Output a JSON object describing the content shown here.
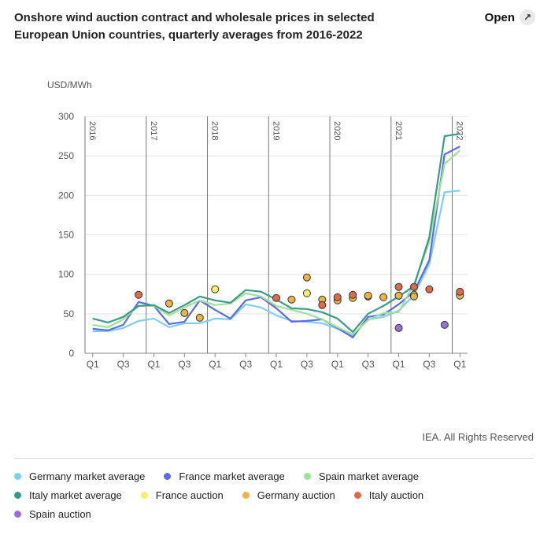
{
  "header": {
    "title": "Onshore wind auction contract and wholesale prices in selected European Union countries, quarterly averages from 2016-2022",
    "open_label": "Open",
    "open_icon": "external-link-icon"
  },
  "credit": "IEA. All Rights Reserved",
  "chart_data": {
    "type": "line",
    "ylabel": "USD/MWh",
    "ylim": [
      0,
      300
    ],
    "yticks": [
      "0",
      "50",
      "100",
      "150",
      "200",
      "250",
      "300"
    ],
    "year_labels": [
      "2016",
      "2017",
      "2018",
      "2019",
      "2020",
      "2021",
      "2022"
    ],
    "x_tick_labels": [
      "Q1",
      "Q3",
      "Q1",
      "Q3",
      "Q1",
      "Q3",
      "Q1",
      "Q3",
      "Q1",
      "Q3",
      "Q1",
      "Q3",
      "Q1"
    ],
    "x_range": [
      "2016-Q1",
      "2022-Q1"
    ],
    "series": [
      {
        "name": "Germany market average",
        "kind": "line",
        "color": "#7fcdf4",
        "x": [
          "2016-Q1",
          "2016-Q2",
          "2016-Q3",
          "2016-Q4",
          "2017-Q1",
          "2017-Q2",
          "2017-Q3",
          "2017-Q4",
          "2018-Q1",
          "2018-Q2",
          "2018-Q3",
          "2018-Q4",
          "2019-Q1",
          "2019-Q2",
          "2019-Q3",
          "2019-Q4",
          "2020-Q1",
          "2020-Q2",
          "2020-Q3",
          "2020-Q4",
          "2021-Q1",
          "2021-Q2",
          "2021-Q3",
          "2021-Q4",
          "2022-Q1"
        ],
        "y": [
          28,
          28,
          32,
          41,
          44,
          33,
          38,
          38,
          44,
          43,
          62,
          58,
          48,
          41,
          40,
          38,
          31,
          22,
          43,
          46,
          54,
          74,
          113,
          204,
          206
        ]
      },
      {
        "name": "France market average",
        "kind": "line",
        "color": "#5b6ddc",
        "x": [
          "2016-Q1",
          "2016-Q2",
          "2016-Q3",
          "2016-Q4",
          "2017-Q1",
          "2017-Q2",
          "2017-Q3",
          "2017-Q4",
          "2018-Q1",
          "2018-Q2",
          "2018-Q3",
          "2018-Q4",
          "2019-Q1",
          "2019-Q2",
          "2019-Q3",
          "2019-Q4",
          "2020-Q1",
          "2020-Q2",
          "2020-Q3",
          "2020-Q4",
          "2021-Q1",
          "2021-Q2",
          "2021-Q3",
          "2021-Q4",
          "2022-Q1"
        ],
        "y": [
          31,
          29,
          36,
          65,
          60,
          37,
          40,
          67,
          55,
          44,
          67,
          71,
          57,
          40,
          41,
          43,
          32,
          20,
          46,
          49,
          62,
          78,
          118,
          252,
          262
        ]
      },
      {
        "name": "Spain market average",
        "kind": "line",
        "color": "#9ee29a",
        "x": [
          "2016-Q1",
          "2016-Q2",
          "2016-Q3",
          "2016-Q4",
          "2017-Q1",
          "2017-Q2",
          "2017-Q3",
          "2017-Q4",
          "2018-Q1",
          "2018-Q2",
          "2018-Q3",
          "2018-Q4",
          "2019-Q1",
          "2019-Q2",
          "2019-Q3",
          "2019-Q4",
          "2020-Q1",
          "2020-Q2",
          "2020-Q3",
          "2020-Q4",
          "2021-Q1",
          "2021-Q2",
          "2021-Q3",
          "2021-Q4",
          "2022-Q1"
        ],
        "y": [
          36,
          33,
          43,
          60,
          60,
          48,
          58,
          67,
          61,
          63,
          76,
          72,
          60,
          55,
          50,
          43,
          33,
          24,
          42,
          51,
          52,
          88,
          141,
          240,
          257
        ]
      },
      {
        "name": "Italy market average",
        "kind": "line",
        "color": "#3a9a8a",
        "x": [
          "2016-Q1",
          "2016-Q2",
          "2016-Q3",
          "2016-Q4",
          "2017-Q1",
          "2017-Q2",
          "2017-Q3",
          "2017-Q4",
          "2018-Q1",
          "2018-Q2",
          "2018-Q3",
          "2018-Q4",
          "2019-Q1",
          "2019-Q2",
          "2019-Q3",
          "2019-Q4",
          "2020-Q1",
          "2020-Q2",
          "2020-Q3",
          "2020-Q4",
          "2021-Q1",
          "2021-Q2",
          "2021-Q3",
          "2021-Q4",
          "2022-Q1"
        ],
        "y": [
          44,
          39,
          46,
          60,
          61,
          51,
          61,
          72,
          67,
          64,
          80,
          78,
          68,
          57,
          56,
          52,
          44,
          27,
          50,
          60,
          72,
          85,
          147,
          275,
          278
        ]
      },
      {
        "name": "France auction",
        "kind": "scatter",
        "color": "#f6f06a",
        "x": [
          "2018-Q1",
          "2019-Q3",
          "2020-Q3",
          "2021-Q1",
          "2021-Q2",
          "2022-Q1"
        ],
        "y": [
          81,
          76,
          72,
          73,
          74,
          74
        ]
      },
      {
        "name": "Germany auction",
        "kind": "scatter",
        "color": "#e9b543",
        "x": [
          "2017-Q2",
          "2017-Q3",
          "2017-Q4",
          "2019-Q2",
          "2019-Q3",
          "2019-Q4",
          "2020-Q1",
          "2020-Q2",
          "2020-Q3",
          "2020-Q4",
          "2021-Q1",
          "2021-Q2",
          "2022-Q1"
        ],
        "y": [
          63,
          51,
          45,
          68,
          96,
          68,
          67,
          70,
          73,
          71,
          73,
          72,
          73
        ]
      },
      {
        "name": "Italy auction",
        "kind": "scatter",
        "color": "#e0694a",
        "x": [
          "2016-Q4",
          "2019-Q1",
          "2019-Q4",
          "2020-Q1",
          "2020-Q2",
          "2021-Q1",
          "2021-Q2",
          "2021-Q3",
          "2022-Q1"
        ],
        "y": [
          74,
          70,
          61,
          71,
          74,
          84,
          84,
          81,
          78
        ]
      },
      {
        "name": "Spain auction",
        "kind": "scatter",
        "color": "#9a6fd6",
        "x": [
          "2021-Q1",
          "2021-Q4"
        ],
        "y": [
          32,
          36
        ]
      }
    ]
  }
}
